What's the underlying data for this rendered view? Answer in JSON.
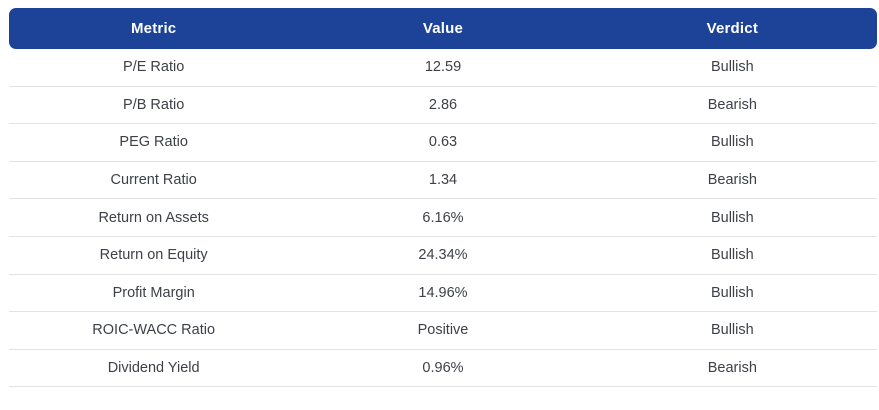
{
  "table": {
    "columns": [
      {
        "label": "Metric"
      },
      {
        "label": "Value"
      },
      {
        "label": "Verdict"
      }
    ],
    "rows": [
      {
        "metric": "P/E Ratio",
        "value": "12.59",
        "verdict": "Bullish"
      },
      {
        "metric": "P/B Ratio",
        "value": "2.86",
        "verdict": "Bearish"
      },
      {
        "metric": "PEG Ratio",
        "value": "0.63",
        "verdict": "Bullish"
      },
      {
        "metric": "Current Ratio",
        "value": "1.34",
        "verdict": "Bearish"
      },
      {
        "metric": "Return on Assets",
        "value": "6.16%",
        "verdict": "Bullish"
      },
      {
        "metric": "Return on Equity",
        "value": "24.34%",
        "verdict": "Bullish"
      },
      {
        "metric": "Profit Margin",
        "value": "14.96%",
        "verdict": "Bullish"
      },
      {
        "metric": "ROIC-WACC Ratio",
        "value": "Positive",
        "verdict": "Bullish"
      },
      {
        "metric": "Dividend Yield",
        "value": "0.96%",
        "verdict": "Bearish"
      }
    ]
  },
  "colors": {
    "header_background": "#1c4398",
    "header_text": "#ffffff",
    "row_border": "#e2e3e7",
    "cell_text": "#3d4147",
    "page_background": "#ffffff"
  }
}
